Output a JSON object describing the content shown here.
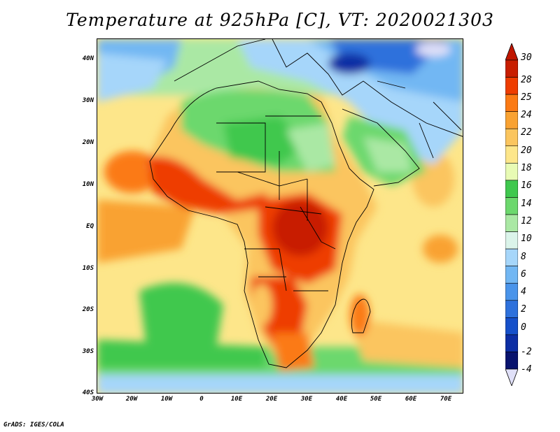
{
  "title": "Temperature at 925hPa [C], VT: 2020021303",
  "footer": "GrADS: IGES/COLA",
  "axes": {
    "y_ticks": [
      "40N",
      "30N",
      "20N",
      "10N",
      "EQ",
      "10S",
      "20S",
      "30S",
      "40S"
    ],
    "x_ticks": [
      "30W",
      "20W",
      "10W",
      "0",
      "10E",
      "20E",
      "30E",
      "40E",
      "50E",
      "60E",
      "70E"
    ]
  },
  "colorbar": {
    "labels": [
      "30",
      "28",
      "25",
      "24",
      "22",
      "20",
      "18",
      "16",
      "14",
      "12",
      "10",
      "8",
      "6",
      "4",
      "2",
      "0",
      "-2",
      "-4"
    ],
    "colors": [
      "#c81e00",
      "#ee3d00",
      "#fb7a14",
      "#f9a232",
      "#fbc55e",
      "#fde68a",
      "#e8fbb4",
      "#3fc84e",
      "#6cd86d",
      "#aae8a4",
      "#dbf4ea",
      "#a6d6fa",
      "#72b7f3",
      "#4a94ea",
      "#2e71dc",
      "#1650ca",
      "#0d2ea4",
      "#08136e"
    ],
    "top_arrow_color": "#c01600",
    "bottom_arrow_color": "#e0e0f8"
  },
  "map": {
    "region": "Africa, Middle East, Atlantic and Indian Oceans",
    "lon_range": [
      "30W",
      "75E"
    ],
    "lat_range": [
      "40S",
      "45N"
    ]
  }
}
